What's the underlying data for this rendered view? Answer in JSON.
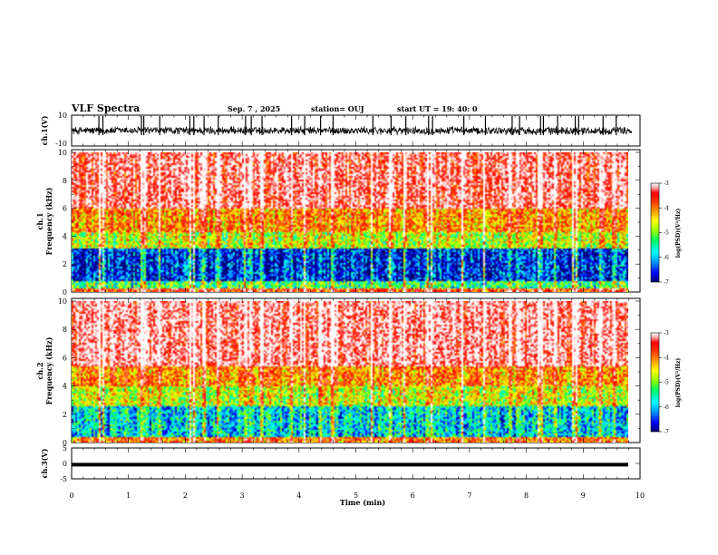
{
  "header": {
    "title": "VLF Spectra",
    "date": "Sep. 7 , 2025",
    "station": "station= OUJ",
    "start": "start  UT =  19: 40: 0"
  },
  "chart_data": [
    {
      "type": "line",
      "name": "ch1-waveform",
      "ylabel": "ch.1(V)",
      "ylim": [
        -10,
        10
      ],
      "yticks": [
        "10",
        "-10"
      ],
      "xlim": [
        0,
        10
      ],
      "baseline": 0,
      "amplitude_typical": 2.5,
      "impulse_times_min": [
        0.48,
        0.55,
        1.23,
        1.27,
        1.55,
        2.08,
        2.15,
        2.33,
        2.58,
        3.06,
        3.16,
        3.35,
        3.87,
        4.1,
        4.38,
        4.6,
        5.3,
        5.62,
        5.88,
        6.28,
        6.35,
        6.9,
        7.28,
        7.75,
        7.88,
        8.25,
        8.3,
        8.55,
        8.86,
        8.92,
        9.35,
        9.58
      ]
    },
    {
      "type": "heatmap",
      "name": "ch1-spectrogram",
      "ylabel_line1": "ch.1",
      "ylabel_line2": "Frequency (kHz)",
      "ylim": [
        0,
        10
      ],
      "yticks": [
        "0",
        "2",
        "4",
        "6",
        "8",
        "10"
      ],
      "xlim": [
        0,
        9.85
      ],
      "bands_kHz_log_psd": [
        {
          "f_low": 0,
          "f_high": 0.3,
          "value": -4.0
        },
        {
          "f_low": 0.3,
          "f_high": 0.8,
          "value": -5.5
        },
        {
          "f_low": 0.8,
          "f_high": 3.2,
          "value": -6.6
        },
        {
          "f_low": 3.2,
          "f_high": 4.4,
          "value": -5.0
        },
        {
          "f_low": 4.4,
          "f_high": 6.0,
          "value": -4.4
        },
        {
          "f_low": 6.0,
          "f_high": 10.0,
          "value": -3.5
        }
      ],
      "colorbar": {
        "label": "log(PSD)(V²/Hz)",
        "ticks": [
          "-3",
          "-4",
          "-5",
          "-6",
          "-7"
        ],
        "range": [
          -7,
          -3
        ]
      }
    },
    {
      "type": "heatmap",
      "name": "ch2-spectrogram",
      "ylabel_line1": "ch.2",
      "ylabel_line2": "Frequency (kHz)",
      "ylim": [
        0,
        10
      ],
      "yticks": [
        "0",
        "2",
        "4",
        "6",
        "8",
        "10"
      ],
      "xlim": [
        0,
        9.85
      ],
      "bands_kHz_log_psd": [
        {
          "f_low": 0,
          "f_high": 0.5,
          "value": -4.3
        },
        {
          "f_low": 0.5,
          "f_high": 2.6,
          "value": -6.0
        },
        {
          "f_low": 2.6,
          "f_high": 4.0,
          "value": -5.0
        },
        {
          "f_low": 4.0,
          "f_high": 5.5,
          "value": -4.4
        },
        {
          "f_low": 5.5,
          "f_high": 10.0,
          "value": -3.4
        }
      ],
      "colorbar": {
        "label": "log(PSD)(V²/Hz)",
        "ticks": [
          "-3",
          "-4",
          "-5",
          "-6",
          "-7"
        ],
        "range": [
          -7,
          -3
        ]
      }
    },
    {
      "type": "line",
      "name": "ch3-waveform",
      "ylabel": "ch.3(V)",
      "ylim": [
        -5,
        5
      ],
      "yticks": [
        "5",
        "0",
        "-5"
      ],
      "xlim": [
        0,
        10
      ],
      "constant_value": -0.4,
      "xlabel": "Time  (min)",
      "xticks": [
        "0",
        "1",
        "2",
        "3",
        "4",
        "5",
        "6",
        "7",
        "8",
        "9",
        "10"
      ]
    }
  ],
  "colors": {
    "colormap": [
      "#00006e",
      "#0000ff",
      "#0096ff",
      "#00ffff",
      "#00ff64",
      "#96ff00",
      "#ffff00",
      "#ff9600",
      "#ff3200",
      "#ff0000",
      "#ffb4b4",
      "#ffffff"
    ],
    "line": "#000000"
  }
}
